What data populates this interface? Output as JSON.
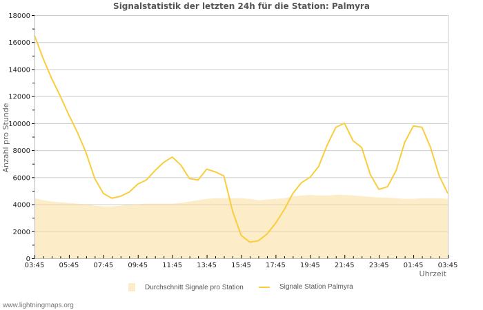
{
  "chart_data": {
    "type": "line",
    "title": "Signalstatistik der letzten 24h für die Station: Palmyra",
    "xlabel": "Uhrzeit",
    "ylabel": "Anzahl pro Stunde",
    "ylim": [
      0,
      18000
    ],
    "y_ticks": [
      0,
      2000,
      4000,
      6000,
      8000,
      10000,
      12000,
      14000,
      16000,
      18000
    ],
    "x_tick_labels": [
      "03:45",
      "05:45",
      "07:45",
      "09:45",
      "11:45",
      "13:45",
      "15:45",
      "17:45",
      "19:45",
      "21:45",
      "23:45",
      "01:45",
      "03:45"
    ],
    "grid": true,
    "legend_position": "bottom",
    "x": [
      "03:45",
      "04:15",
      "04:45",
      "05:15",
      "05:45",
      "06:15",
      "06:45",
      "07:15",
      "07:45",
      "08:15",
      "08:45",
      "09:15",
      "09:45",
      "10:15",
      "10:45",
      "11:15",
      "11:45",
      "12:15",
      "12:45",
      "13:15",
      "13:45",
      "14:15",
      "14:45",
      "15:15",
      "15:45",
      "16:15",
      "16:45",
      "17:15",
      "17:45",
      "18:15",
      "18:45",
      "19:15",
      "19:45",
      "20:15",
      "20:45",
      "21:15",
      "21:45",
      "22:15",
      "22:45",
      "23:15",
      "23:45",
      "00:15",
      "00:45",
      "01:15",
      "01:45",
      "02:15",
      "02:45",
      "03:15",
      "03:45"
    ],
    "series": [
      {
        "name": "Durchschnitt Signale pro Station",
        "type": "area",
        "color": "#fdecc8",
        "values": [
          4450,
          4300,
          4200,
          4150,
          4100,
          4050,
          4000,
          3900,
          3850,
          3850,
          3900,
          3950,
          4000,
          4050,
          4050,
          4050,
          4050,
          4100,
          4200,
          4300,
          4400,
          4450,
          4450,
          4450,
          4450,
          4400,
          4300,
          4350,
          4400,
          4450,
          4600,
          4650,
          4700,
          4650,
          4650,
          4700,
          4700,
          4650,
          4600,
          4550,
          4500,
          4500,
          4450,
          4400,
          4400,
          4450,
          4450,
          4450,
          4400
        ]
      },
      {
        "name": "Signale Station Palmyra",
        "type": "line",
        "color": "#f9cd3c",
        "values": [
          16500,
          14800,
          13300,
          12000,
          10600,
          9300,
          7800,
          5900,
          4800,
          4450,
          4600,
          4900,
          5500,
          5800,
          6500,
          7100,
          7500,
          6900,
          5900,
          5800,
          6600,
          6400,
          6100,
          3500,
          1700,
          1200,
          1300,
          1800,
          2600,
          3600,
          4800,
          5600,
          6000,
          6800,
          8400,
          9700,
          10000,
          8700,
          8200,
          6200,
          5100,
          5300,
          6500,
          8600,
          9800,
          9700,
          8200,
          6100,
          4800
        ]
      }
    ]
  },
  "legend": {
    "area_label": "Durchschnitt Signale pro Station",
    "line_label": "Signale Station Palmyra"
  },
  "footer": "www.lightningmaps.org"
}
